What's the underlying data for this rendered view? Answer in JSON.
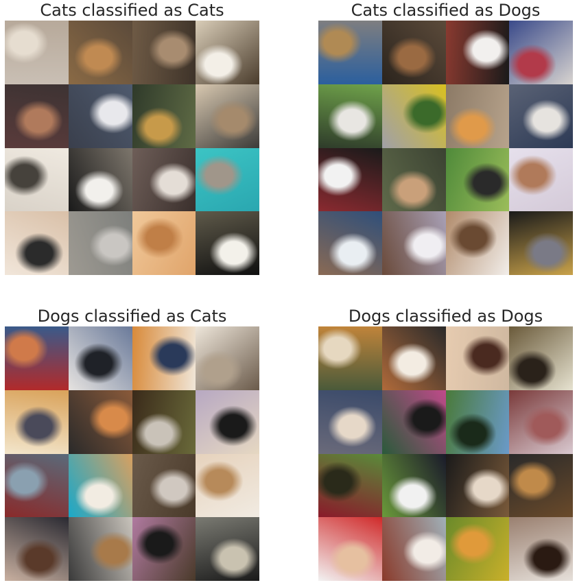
{
  "panels": [
    {
      "id": "cc",
      "title": "Cats classified as Cats",
      "tiles": [
        {
          "subject": "cat",
          "colors": [
            "#c9bfb4",
            "#e6ddd0",
            "#b7a99a"
          ]
        },
        {
          "subject": "cat",
          "colors": [
            "#8a6a45",
            "#c08a52",
            "#5b4a3a"
          ]
        },
        {
          "subject": "cat",
          "colors": [
            "#6e5a45",
            "#a88c70",
            "#3e3329"
          ]
        },
        {
          "subject": "cat",
          "colors": [
            "#d9cdb8",
            "#f3efe7",
            "#4a3c2c"
          ]
        },
        {
          "subject": "cat",
          "colors": [
            "#3d3333",
            "#b07a5c",
            "#5a3b3b"
          ]
        },
        {
          "subject": "cat",
          "colors": [
            "#4e5a6e",
            "#e8e8ec",
            "#3a3f4c"
          ]
        },
        {
          "subject": "cat",
          "colors": [
            "#5f6b45",
            "#c79a4a",
            "#2f3a2a"
          ]
        },
        {
          "subject": "cat",
          "colors": [
            "#3b3a38",
            "#a58a6c",
            "#d8c8b0"
          ]
        },
        {
          "subject": "cat",
          "colors": [
            "#d9d2c8",
            "#46423c",
            "#efe9e0"
          ]
        },
        {
          "subject": "cat",
          "colors": [
            "#1a1a1a",
            "#f2f0ec",
            "#7d766c"
          ]
        },
        {
          "subject": "cat",
          "colors": [
            "#6e5e58",
            "#e4ddd6",
            "#3a2f2c"
          ]
        },
        {
          "subject": "cat",
          "colors": [
            "#3cc4c4",
            "#a0968a",
            "#2aa7b0"
          ]
        },
        {
          "subject": "cat",
          "colors": [
            "#d9c0a8",
            "#2b2b2b",
            "#f1e6da"
          ]
        },
        {
          "subject": "cat",
          "colors": [
            "#7d7f7c",
            "#c9c6c2",
            "#9e9a92"
          ]
        },
        {
          "subject": "cat",
          "colors": [
            "#e0a46a",
            "#c07f47",
            "#f0c89a"
          ]
        },
        {
          "subject": "cat",
          "colors": [
            "#0f0f0f",
            "#f3f1ea",
            "#5f5a4a"
          ]
        }
      ]
    },
    {
      "id": "cd",
      "title": "Cats classified as Dogs",
      "tiles": [
        {
          "subject": "cat",
          "colors": [
            "#2b5f9e",
            "#b08a54",
            "#7e7e80"
          ]
        },
        {
          "subject": "cat",
          "colors": [
            "#2b241d",
            "#9a6a42",
            "#5b4a3a"
          ]
        },
        {
          "subject": "cat",
          "colors": [
            "#8a3a30",
            "#f2f0ee",
            "#1a1a1a"
          ]
        },
        {
          "subject": "cat",
          "colors": [
            "#3a4a8a",
            "#b23a4a",
            "#d8d4d0"
          ]
        },
        {
          "subject": "cat",
          "colors": [
            "#6fa24a",
            "#e8e6e2",
            "#2e3b2a"
          ]
        },
        {
          "subject": "cat",
          "colors": [
            "#d9c020",
            "#3b6a2a",
            "#a0a0a8"
          ]
        },
        {
          "subject": "cat",
          "colors": [
            "#b7a38c",
            "#e09a4a",
            "#8c7a66"
          ]
        },
        {
          "subject": "cat",
          "colors": [
            "#2d3a55",
            "#e6e3df",
            "#5a6275"
          ]
        },
        {
          "subject": "cat",
          "colors": [
            "#8a2a30",
            "#f2f2f2",
            "#1a1a1a"
          ]
        },
        {
          "subject": "cat",
          "colors": [
            "#5f6a4a",
            "#c9a07a",
            "#3b4232"
          ]
        },
        {
          "subject": "cat",
          "colors": [
            "#4f8a3a",
            "#2a2a2a",
            "#9bbd5a"
          ]
        },
        {
          "subject": "cat",
          "colors": [
            "#e6e0ec",
            "#b07a5a",
            "#d4cad8"
          ]
        },
        {
          "subject": "cat",
          "colors": [
            "#2f4f7a",
            "#e9eef2",
            "#8a6a54"
          ]
        },
        {
          "subject": "cat",
          "colors": [
            "#a8a0b6",
            "#f0eef2",
            "#6a4a3a"
          ]
        },
        {
          "subject": "cat",
          "colors": [
            "#f2eeea",
            "#6a4a32",
            "#b08a6a"
          ]
        },
        {
          "subject": "cat",
          "colors": [
            "#c9a24a",
            "#7a7a86",
            "#1a1a1a"
          ]
        }
      ]
    },
    {
      "id": "dc",
      "title": "Dogs classified as Cats",
      "tiles": [
        {
          "subject": "dog",
          "colors": [
            "#b22a2a",
            "#d07a4a",
            "#3a5a8a"
          ]
        },
        {
          "subject": "dog",
          "colors": [
            "#e6e3e0",
            "#1f2228",
            "#6a7a9a"
          ]
        },
        {
          "subject": "dog",
          "colors": [
            "#d88a3a",
            "#2a3a5a",
            "#f0e6d8"
          ]
        },
        {
          "subject": "dog",
          "colors": [
            "#eee6da",
            "#b0a08c",
            "#6a5a4a"
          ]
        },
        {
          "subject": "dog",
          "colors": [
            "#d9a25a",
            "#4a4a5a",
            "#f3e6cc"
          ]
        },
        {
          "subject": "dog",
          "colors": [
            "#8a5a3a",
            "#d88a4a",
            "#2a2a2a"
          ]
        },
        {
          "subject": "dog",
          "colors": [
            "#6a6a3a",
            "#c9c2b8",
            "#3a2a1a"
          ]
        },
        {
          "subject": "dog",
          "colors": [
            "#e6d8c2",
            "#1a1a1a",
            "#b7a8c2"
          ]
        },
        {
          "subject": "dog",
          "colors": [
            "#8a2a2a",
            "#8aa0b0",
            "#5a6a7a"
          ]
        },
        {
          "subject": "dog",
          "colors": [
            "#1aa8c9",
            "#f2ece2",
            "#d8a060"
          ]
        },
        {
          "subject": "dog",
          "colors": [
            "#6a5a4a",
            "#d0c8c0",
            "#4a3a2a"
          ]
        },
        {
          "subject": "dog",
          "colors": [
            "#e6d2bc",
            "#b78a5a",
            "#f1ebe2"
          ]
        },
        {
          "subject": "dog",
          "colors": [
            "#2a2a32",
            "#5a3a2a",
            "#c9b0a0"
          ]
        },
        {
          "subject": "dog",
          "colors": [
            "#c9c4bc",
            "#a87a4a",
            "#3a3a3a"
          ]
        },
        {
          "subject": "dog",
          "colors": [
            "#4a3a2a",
            "#1a1a1a",
            "#b07aa0"
          ]
        },
        {
          "subject": "dog",
          "colors": [
            "#1a1a1a",
            "#c9c2b0",
            "#7a7a72"
          ]
        }
      ]
    },
    {
      "id": "dd",
      "title": "Dogs classified as Dogs",
      "tiles": [
        {
          "subject": "dog",
          "colors": [
            "#4a5a3a",
            "#e6d8c0",
            "#c0843a"
          ]
        },
        {
          "subject": "dog",
          "colors": [
            "#b06a3a",
            "#f3ece2",
            "#2a2a2a"
          ]
        },
        {
          "subject": "dog",
          "colors": [
            "#e6cbb0",
            "#4a2a20",
            "#cfb8a0"
          ]
        },
        {
          "subject": "dog",
          "colors": [
            "#6a5a3a",
            "#2a221a",
            "#e6e2d0"
          ]
        },
        {
          "subject": "dog",
          "colors": [
            "#3a4a6a",
            "#e6d8c8",
            "#6a6a7a"
          ]
        },
        {
          "subject": "dog",
          "colors": [
            "#c04a8a",
            "#1a1a1a",
            "#2a5a3a"
          ]
        },
        {
          "subject": "dog",
          "colors": [
            "#6a9ac9",
            "#1a2a1a",
            "#4a7a3a"
          ]
        },
        {
          "subject": "dog",
          "colors": [
            "#d9c9d0",
            "#a05a5a",
            "#7a3a3a"
          ]
        },
        {
          "subject": "dog",
          "colors": [
            "#8a1a2a",
            "#2a2a1a",
            "#5a8a3a"
          ]
        },
        {
          "subject": "dog",
          "colors": [
            "#6a9a3a",
            "#f1f1f1",
            "#1a1a2a"
          ]
        },
        {
          "subject": "dog",
          "colors": [
            "#1a1a1a",
            "#e6d8c8",
            "#7a5a3a"
          ]
        },
        {
          "subject": "dog",
          "colors": [
            "#2a2a2a",
            "#c08a4a",
            "#6a4a2a"
          ]
        },
        {
          "subject": "dog",
          "colors": [
            "#d02a2a",
            "#e6c0a0",
            "#f2f2f2"
          ]
        },
        {
          "subject": "dog",
          "colors": [
            "#a0b0b8",
            "#f2ece6",
            "#8a3a2a"
          ]
        },
        {
          "subject": "dog",
          "colors": [
            "#c9b02a",
            "#e09a3a",
            "#6a8a2a"
          ]
        },
        {
          "subject": "dog",
          "colors": [
            "#e6e0da",
            "#2a1a12",
            "#9a8070"
          ]
        }
      ]
    }
  ]
}
